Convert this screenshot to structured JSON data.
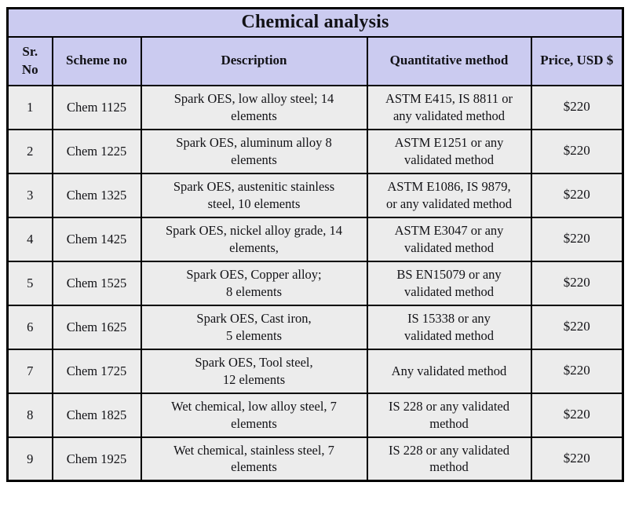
{
  "table": {
    "title": "Chemical analysis",
    "columns": {
      "sr_no": "Sr.\nNo",
      "scheme_no": "Scheme no",
      "description": "Description",
      "method": "Quantitative method",
      "price": "Price, USD $"
    },
    "rows": [
      {
        "sr": "1",
        "scheme": "Chem 1125",
        "description": "Spark OES, low alloy steel; 14\nelements",
        "method": "ASTM E415, IS 8811 or\nany validated method",
        "price": "$220"
      },
      {
        "sr": "2",
        "scheme": "Chem 1225",
        "description": "Spark OES, aluminum alloy 8\nelements",
        "method": "ASTM E1251 or any\nvalidated method",
        "price": "$220"
      },
      {
        "sr": "3",
        "scheme": "Chem 1325",
        "description": "Spark OES, austenitic stainless\nsteel, 10 elements",
        "method": "ASTM E1086, IS 9879,\nor any validated method",
        "price": "$220"
      },
      {
        "sr": "4",
        "scheme": "Chem 1425",
        "description": "Spark OES, nickel alloy grade, 14\nelements,",
        "method": "ASTM E3047 or any\nvalidated method",
        "price": "$220"
      },
      {
        "sr": "5",
        "scheme": "Chem 1525",
        "description": "Spark OES, Copper alloy;\n8 elements",
        "method": "BS EN15079 or any\nvalidated method",
        "price": "$220"
      },
      {
        "sr": "6",
        "scheme": "Chem 1625",
        "description": "Spark OES, Cast iron,\n5 elements",
        "method": "IS 15338 or any\nvalidated method",
        "price": "$220"
      },
      {
        "sr": "7",
        "scheme": "Chem 1725",
        "description": "Spark OES, Tool steel,\n12 elements",
        "method": "Any validated method",
        "price": "$220"
      },
      {
        "sr": "8",
        "scheme": "Chem 1825",
        "description": "Wet chemical, low alloy steel, 7\nelements",
        "method": "IS 228 or any validated\nmethod",
        "price": "$220"
      },
      {
        "sr": "9",
        "scheme": "Chem 1925",
        "description": "Wet chemical, stainless steel, 7\nelements",
        "method": "IS 228 or any validated\nmethod",
        "price": "$220"
      }
    ],
    "colors": {
      "header_bg": "#cbcbf0",
      "row_bg": "#ececec",
      "border": "#000000",
      "text": "#121216",
      "page_bg": "#ffffff"
    }
  }
}
